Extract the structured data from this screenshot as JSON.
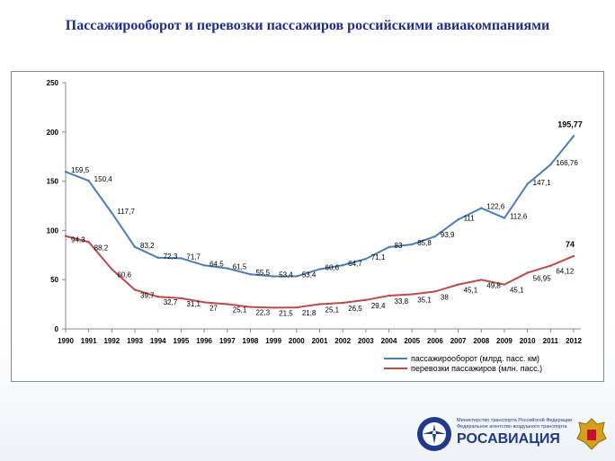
{
  "title": "Пассажирооборот и перевозки пассажиров российскими авиакомпаниями",
  "chart_data": {
    "type": "line",
    "categories": [
      "1990",
      "1991",
      "1992",
      "1993",
      "1994",
      "1995",
      "1996",
      "1997",
      "1998",
      "1999",
      "2000",
      "2001",
      "2002",
      "2003",
      "2004",
      "2005",
      "2006",
      "2007",
      "2008",
      "2009",
      "2010",
      "2011",
      "2012"
    ],
    "ylim": [
      0,
      250
    ],
    "yticks": [
      0,
      50,
      100,
      150,
      200,
      250
    ],
    "grid": false,
    "legend_position": "bottom-right",
    "series": [
      {
        "name": "пассажирооборот (млрд. пасс. км)",
        "color": "#4a7ebb",
        "values": [
          159.5,
          150.4,
          117.7,
          83.2,
          72.3,
          71.7,
          64.5,
          61.5,
          55.5,
          53.4,
          53.4,
          60.6,
          64.7,
          71.1,
          83,
          85.8,
          93.9,
          111,
          122.6,
          112.6,
          147.1,
          166.76,
          195.77
        ],
        "labels": [
          "159,5",
          "150,4",
          "117,7",
          "83,2",
          "72,3",
          "71,7",
          "64,5",
          "61,5",
          "55,5",
          "53,4",
          "53,4",
          "60,6",
          "64,7",
          "71,1",
          "83",
          "85,8",
          "93,9",
          "111",
          "122,6",
          "112,6",
          "147,1",
          "166,76",
          "195,77"
        ]
      },
      {
        "name": "перевозки пассажиров (млн. пасс.)",
        "color": "#be4b48",
        "values": [
          94.3,
          88.2,
          60.6,
          39.7,
          32.7,
          31.1,
          27,
          25.1,
          22.3,
          21.5,
          21.8,
          25.1,
          26.5,
          29.4,
          33.8,
          35.1,
          38,
          45.1,
          49.8,
          45.1,
          56.95,
          64.12,
          74
        ],
        "labels": [
          "94,3",
          "88,2",
          "60,6",
          "39,7",
          "32,7",
          "31,1",
          "27",
          "25,1",
          "22,3",
          "21,5",
          "21,8",
          "25,1",
          "26,5",
          "29,4",
          "33,8",
          "35,1",
          "38",
          "45,1",
          "49,8",
          "45,1",
          "56,95",
          "64,12",
          "74"
        ]
      }
    ],
    "highlight_color": "#c00000"
  },
  "logo": {
    "ministry_line1": "Министерство транспорта Российской Федерации",
    "ministry_line2": "Федеральное агентство воздушного транспорта",
    "brand": "РОСАВИАЦИЯ"
  }
}
